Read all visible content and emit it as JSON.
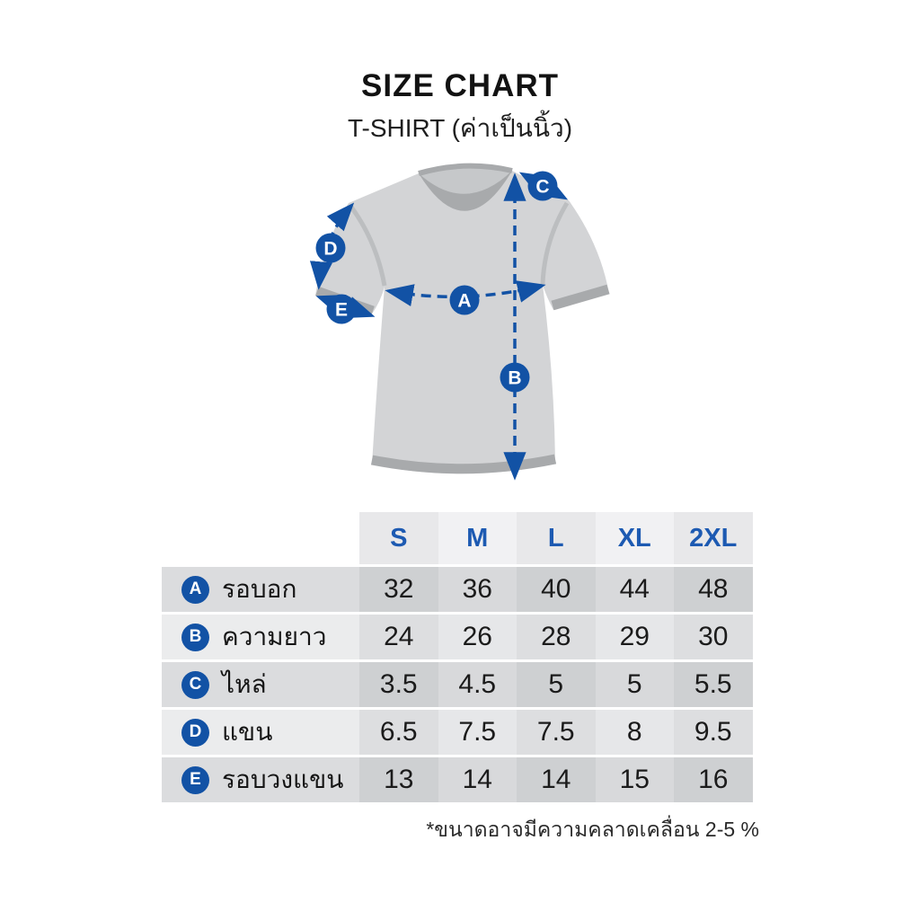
{
  "header": {
    "title": "SIZE CHART",
    "subtitle": "T-SHIRT (ค่าเป็นนิ้ว)"
  },
  "footnote": "*ขนาดอาจมีความคลาดเคลื่อน 2-5 %",
  "colors": {
    "accent": "#1252a5",
    "size_header_text": "#1d5ab2",
    "shirt_body": "#d3d4d6",
    "shirt_trim": "#a8aaac"
  },
  "diagram": {
    "markers": [
      "A",
      "B",
      "C",
      "D",
      "E"
    ]
  },
  "chart_data": {
    "type": "table",
    "title": "SIZE CHART",
    "subtitle": "T-SHIRT (ค่าเป็นนิ้ว)",
    "units": "inches",
    "columns": [
      "S",
      "M",
      "L",
      "XL",
      "2XL"
    ],
    "rows": [
      {
        "code": "A",
        "label": "รอบอก",
        "values": [
          "32",
          "36",
          "40",
          "44",
          "48"
        ]
      },
      {
        "code": "B",
        "label": "ความยาว",
        "values": [
          "24",
          "26",
          "28",
          "29",
          "30"
        ]
      },
      {
        "code": "C",
        "label": "ไหล่",
        "values": [
          "3.5",
          "4.5",
          "5",
          "5",
          "5.5"
        ]
      },
      {
        "code": "D",
        "label": "แขน",
        "values": [
          "6.5",
          "7.5",
          "7.5",
          "8",
          "9.5"
        ]
      },
      {
        "code": "E",
        "label": "รอบวงแขน",
        "values": [
          "13",
          "14",
          "14",
          "15",
          "16"
        ]
      }
    ],
    "footnote": "*ขนาดอาจมีความคลาดเคลื่อน 2-5 %"
  }
}
